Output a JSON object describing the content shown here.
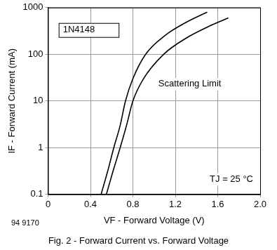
{
  "chart_data": {
    "type": "line",
    "x_label": "VF - Forward Voltage (V)",
    "y_label": "IF - Forward Current (mA)",
    "caption": "Fig. 2 - Forward Current vs. Forward Voltage",
    "figure_code": "94 9170",
    "annotations": [
      "1N4148",
      "Scattering Limit",
      "TJ = 25 °C"
    ],
    "log": "y",
    "grid": true,
    "xlim": [
      0,
      2
    ],
    "xticks": [
      0,
      0.4,
      0.8,
      1.2,
      1.6,
      {
        "value": 2,
        "label": "2.0"
      }
    ],
    "ylim": [
      0.1,
      1000
    ],
    "yticks": [
      0.1,
      1,
      10,
      100,
      1000
    ],
    "series": [
      {
        "color": "#000000",
        "x": [
          0.5,
          0.56,
          0.62,
          0.68,
          0.73,
          0.8,
          0.92,
          1.1,
          1.3,
          1.5
        ],
        "values": [
          0.1,
          0.3,
          1,
          3,
          10,
          30,
          100,
          250,
          480,
          800
        ]
      },
      {
        "color": "#000000",
        "x": [
          0.55,
          0.61,
          0.68,
          0.74,
          0.8,
          0.9,
          1.09,
          1.3,
          1.5,
          1.7
        ],
        "values": [
          0.1,
          0.3,
          1,
          3,
          10,
          30,
          100,
          220,
          380,
          600
        ]
      }
    ]
  }
}
